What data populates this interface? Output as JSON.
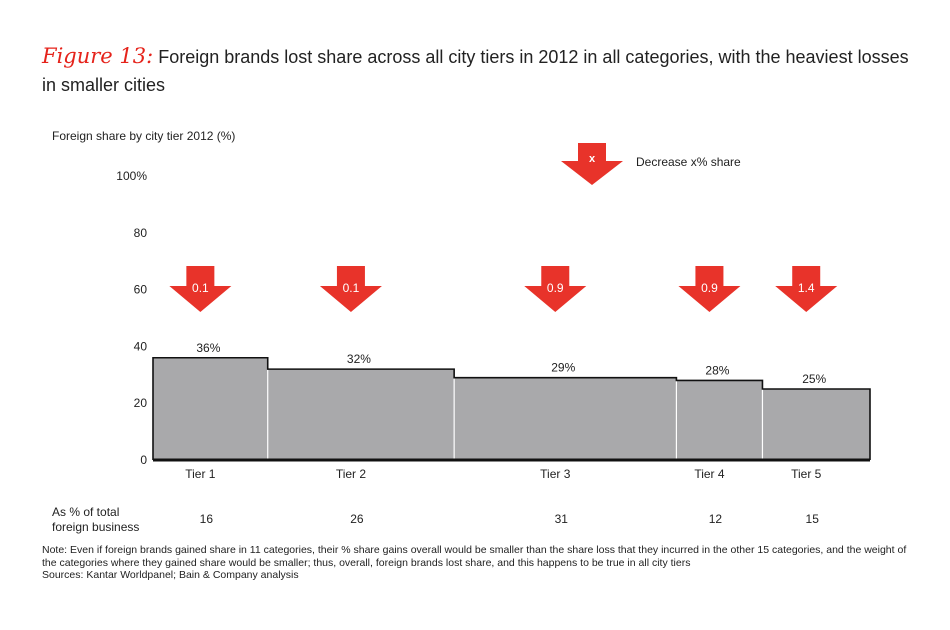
{
  "title": {
    "figure_label": "Figure 13:",
    "text": "Foreign brands lost share across all city tiers in 2012 in all categories, with the heaviest losses in smaller cities"
  },
  "legend": {
    "marker": "x",
    "text": "Decrease x% share"
  },
  "colors": {
    "bar": "#a9a9ab",
    "arrow": "#e8332a",
    "accent": "#e5231b"
  },
  "chart_data": {
    "type": "bar",
    "variable_width": true,
    "ylabel": "Foreign share by city tier 2012 (%)",
    "ylim": [
      0,
      100
    ],
    "yticks": [
      "0",
      "20",
      "40",
      "60",
      "80",
      "100%"
    ],
    "categories": [
      "Tier 1",
      "Tier 2",
      "Tier 3",
      "Tier 4",
      "Tier 5"
    ],
    "values": [
      36,
      32,
      29,
      28,
      25
    ],
    "value_labels": [
      "36%",
      "32%",
      "29%",
      "28%",
      "25%"
    ],
    "widths_label": "As % of total foreign business",
    "widths": [
      16,
      26,
      31,
      12,
      15
    ],
    "decrease": [
      "0.1",
      "0.1",
      "0.9",
      "0.9",
      "1.4"
    ]
  },
  "note": "Note: Even if foreign brands gained share in 11 categories, their % share gains overall would be smaller than the share loss that they incurred in the other 15 categories, and the weight of the categories where they gained share would be smaller; thus, overall, foreign brands lost share, and this happens to be true in all city tiers",
  "sources": "Sources: Kantar Worldpanel; Bain & Company analysis"
}
